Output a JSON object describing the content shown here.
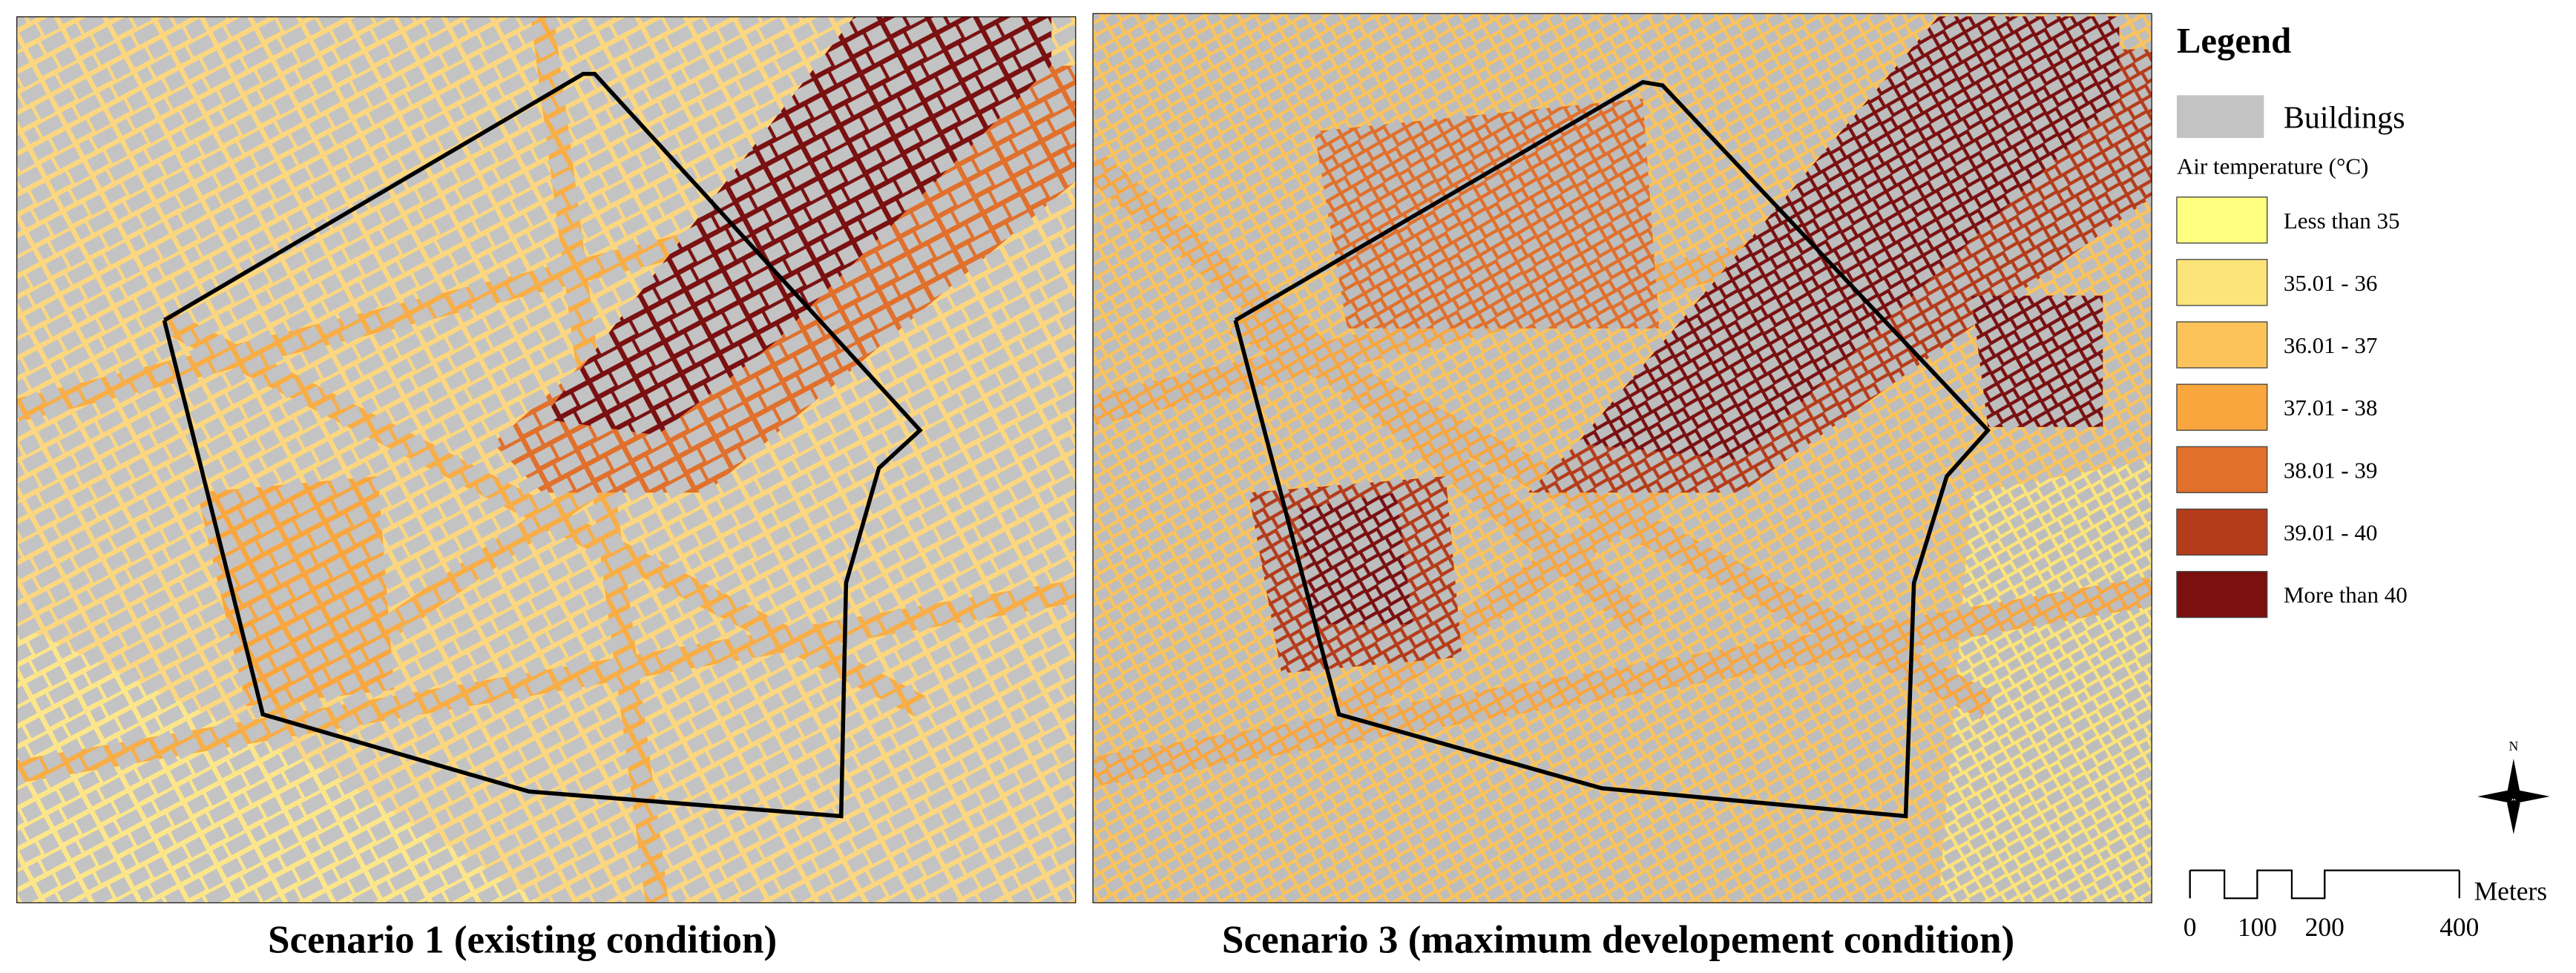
{
  "panels": [
    {
      "caption": "Scenario 1 (existing condition)"
    },
    {
      "caption": "Scenario 3 (maximum developement condition)"
    }
  ],
  "legend": {
    "title": "Legend",
    "buildings": "Buildings",
    "subtitle": "Air temperature (°C)",
    "classes": [
      {
        "label": "Less than 35",
        "color": "#ffff80"
      },
      {
        "label": "35.01 - 36",
        "color": "#fde47a"
      },
      {
        "label": "36.01 - 37",
        "color": "#fcc35a"
      },
      {
        "label": "37.01 - 38",
        "color": "#f9a63e"
      },
      {
        "label": "38.01 - 39",
        "color": "#e0702c"
      },
      {
        "label": "39.01 - 40",
        "color": "#b53c1a"
      },
      {
        "label": "More than 40",
        "color": "#7a1010"
      }
    ]
  },
  "north": "N",
  "scale_bar": {
    "unit": "Meters",
    "ticks": [
      0,
      100,
      200,
      400
    ]
  }
}
